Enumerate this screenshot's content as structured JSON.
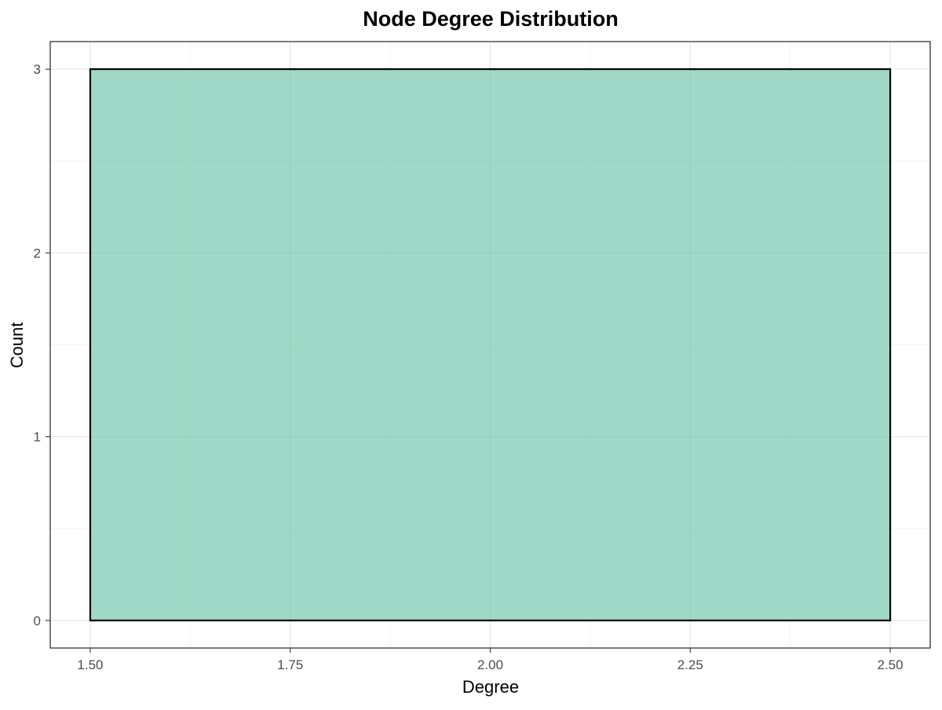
{
  "chart_data": {
    "type": "bar",
    "title": "Node Degree Distribution",
    "xlabel": "Degree",
    "ylabel": "Count",
    "xlim": [
      1.45,
      2.55
    ],
    "ylim": [
      -0.15,
      3.15
    ],
    "x_ticks": [
      1.5,
      1.75,
      2.0,
      2.25,
      2.5
    ],
    "x_tick_labels": [
      "1.50",
      "1.75",
      "2.00",
      "2.25",
      "2.50"
    ],
    "x_minor_ticks": [
      1.625,
      1.875,
      2.125,
      2.375
    ],
    "y_ticks": [
      0,
      1,
      2,
      3
    ],
    "y_tick_labels": [
      "0",
      "1",
      "2",
      "3"
    ],
    "y_minor_ticks": [
      0.5,
      1.5,
      2.5
    ],
    "bins": [
      {
        "x_start": 1.5,
        "x_end": 2.5,
        "count": 3
      }
    ],
    "grid": true,
    "legend": "none",
    "colors": {
      "bar_fill": "#66c2a5",
      "bar_fill_opacity": 0.62,
      "bar_outline": "#000000"
    }
  }
}
